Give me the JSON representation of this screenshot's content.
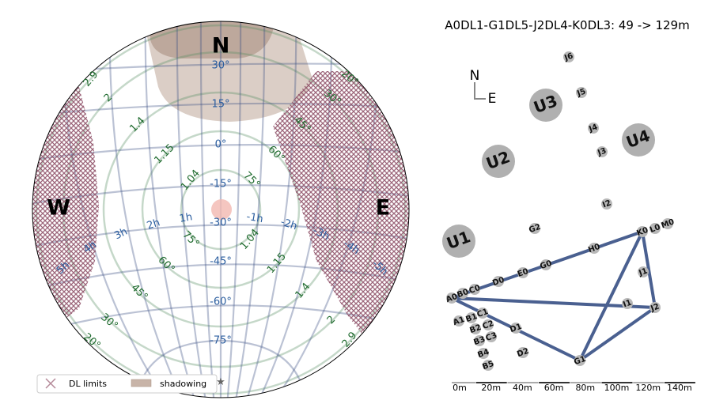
{
  "title": "A0DL1-G1DL5-J2DL4-K0DL3: 49 -> 129m",
  "sky": {
    "cardinals": {
      "north": "N",
      "south_west": "W",
      "east": "E"
    },
    "dec_labels": [
      "30°",
      "15°",
      "0°",
      "-15°",
      "-30°",
      "-45°",
      "-60°",
      "-75°"
    ],
    "ha_labels": [
      "1h",
      "2h",
      "3h",
      "4h",
      "5h",
      "-1h",
      "-2h",
      "-3h",
      "-4h",
      "-5h"
    ],
    "airmass_labels": [
      "1.04",
      "1.15",
      "1.4",
      "2",
      "2.9",
      "1.04",
      "1.15",
      "1.4",
      "2",
      "2.9"
    ],
    "altitude_labels": [
      "75°",
      "60°",
      "45°",
      "30°",
      "20°",
      "75°",
      "60°",
      "45°",
      "30°",
      "20°"
    ],
    "legend": {
      "dl_limits": "DL limits",
      "shadowing": "shadowing"
    },
    "colors": {
      "dl": "#8b4a62",
      "shadow": "#c8b4a8",
      "dec": "#3c4f85",
      "alt": "#5a8f64",
      "target": "#f2b8b0"
    }
  },
  "array": {
    "compass": {
      "north": "N",
      "east": "E"
    },
    "uts": [
      "U1",
      "U2",
      "U3",
      "U4"
    ],
    "stations": [
      "J6",
      "J5",
      "J4",
      "J3",
      "I2",
      "G2",
      "K0",
      "L0",
      "M0",
      "H0",
      "G0",
      "E0",
      "D0",
      "C0",
      "B0",
      "A0",
      "J1",
      "I1",
      "J2",
      "A1",
      "B1",
      "C1",
      "B2",
      "C2",
      "D1",
      "B3",
      "C3",
      "B4",
      "D2",
      "B5",
      "G1"
    ],
    "baselines": [
      [
        "A0",
        "K0"
      ],
      [
        "K0",
        "J2"
      ],
      [
        "K0",
        "G1"
      ],
      [
        "A0",
        "J2"
      ],
      [
        "A0",
        "G1"
      ],
      [
        "G1",
        "J2"
      ]
    ],
    "scale_labels": [
      "0m",
      "20m",
      "40m",
      "60m",
      "80m",
      "100m",
      "120m",
      "140m"
    ],
    "line_color": "#4a6090"
  }
}
